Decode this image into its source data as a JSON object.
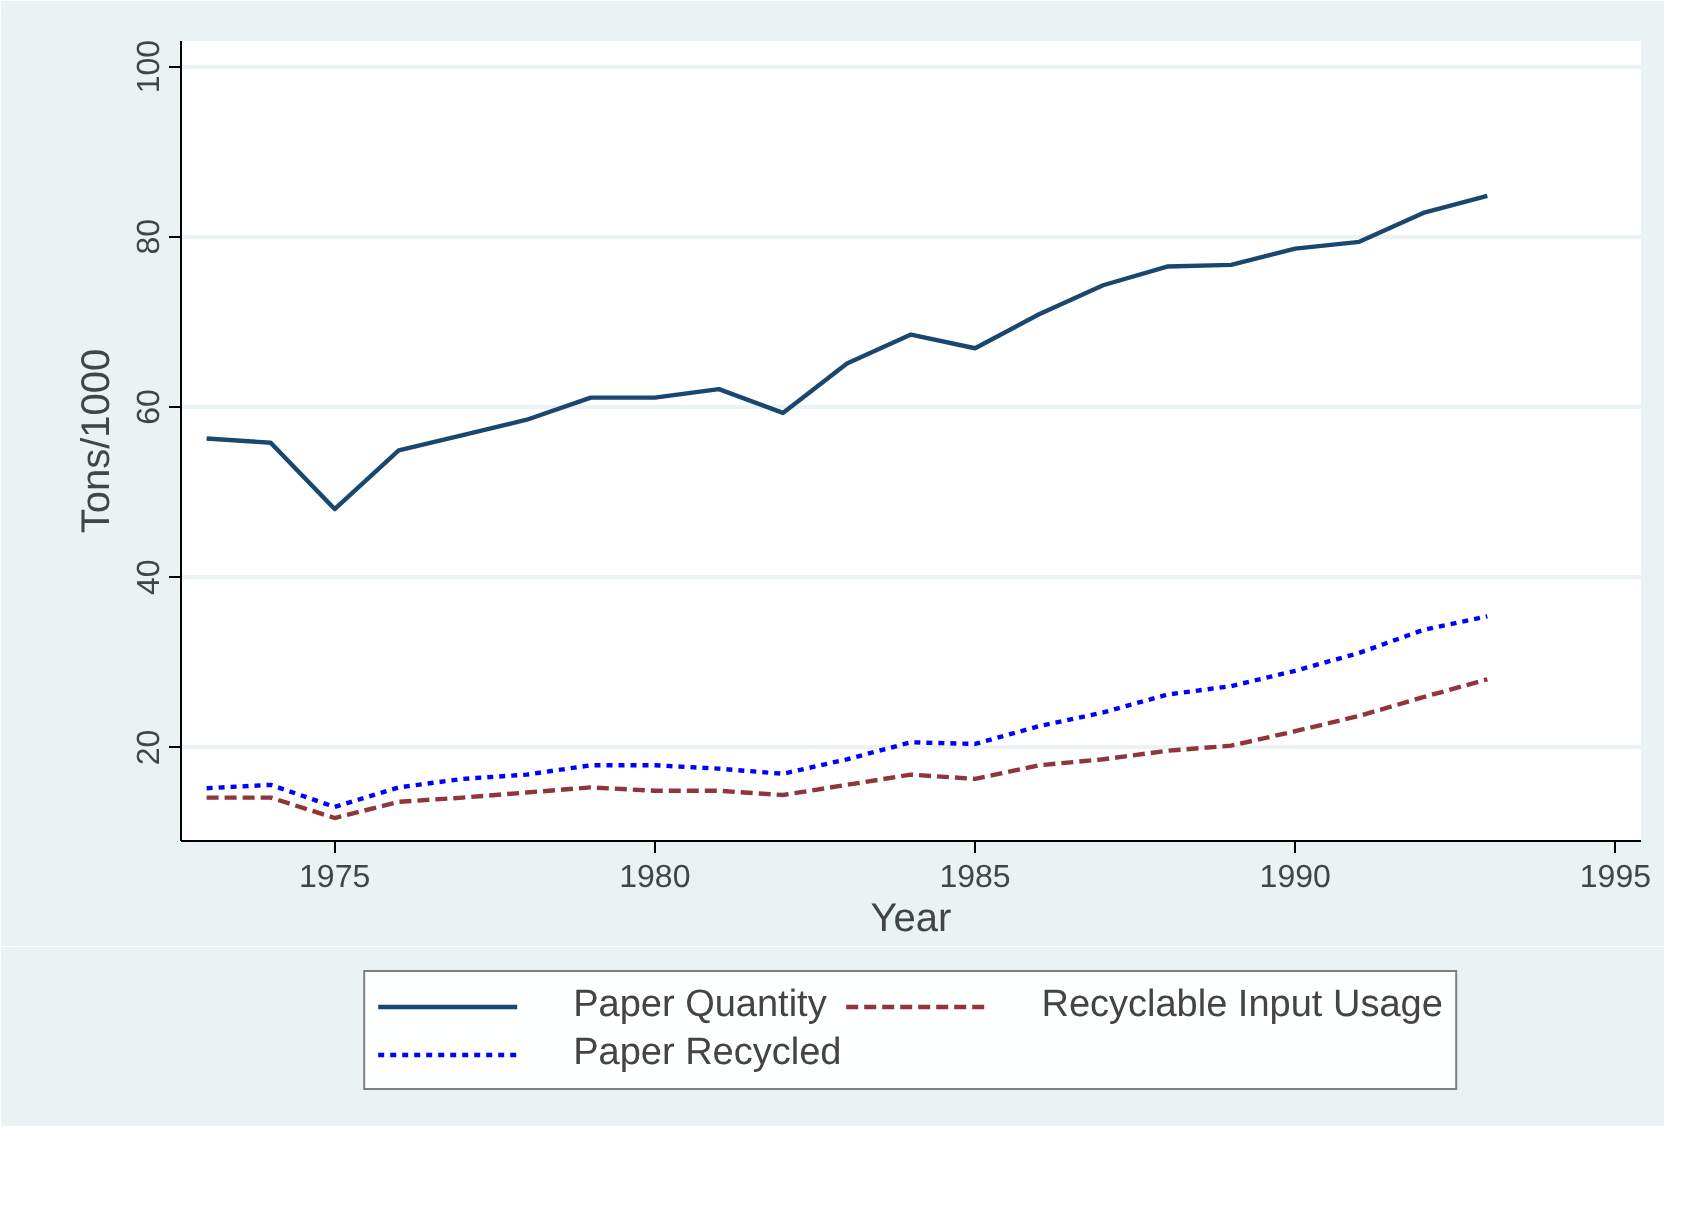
{
  "chart_data": {
    "type": "line",
    "xlabel": "Year",
    "ylabel": "Tons/1000",
    "x": [
      1973,
      1974,
      1975,
      1976,
      1977,
      1978,
      1979,
      1980,
      1981,
      1982,
      1983,
      1984,
      1985,
      1986,
      1987,
      1988,
      1989,
      1990,
      1991,
      1992,
      1993
    ],
    "series": [
      {
        "name": "Paper Quantity",
        "color": "#1a476f",
        "line_style": "solid",
        "values": [
          56.3,
          55.8,
          48.0,
          54.9,
          56.7,
          58.5,
          61.1,
          61.1,
          62.1,
          59.3,
          65.1,
          68.5,
          66.9,
          70.9,
          74.3,
          76.5,
          76.7,
          78.6,
          79.4,
          82.8,
          84.8
        ]
      },
      {
        "name": "Recyclable Input Usage",
        "color": "#90353b",
        "line_style": "dashed",
        "values": [
          14.1,
          14.1,
          11.7,
          13.6,
          14.1,
          14.7,
          15.3,
          14.9,
          14.9,
          14.4,
          15.6,
          16.8,
          16.3,
          17.9,
          18.6,
          19.6,
          20.2,
          21.9,
          23.7,
          25.9,
          28.0
        ]
      },
      {
        "name": "Paper Recycled",
        "color": "#0000ff",
        "line_style": "dotted",
        "values": [
          15.2,
          15.6,
          13.0,
          15.3,
          16.3,
          16.8,
          17.9,
          17.9,
          17.5,
          16.9,
          18.6,
          20.6,
          20.4,
          22.5,
          24.1,
          26.2,
          27.2,
          29.0,
          31.1,
          33.8,
          35.4
        ]
      }
    ],
    "xlim": [
      1972.6,
      1995.4
    ],
    "ylim": [
      9,
      103
    ],
    "xticks": [
      1975,
      1980,
      1985,
      1990,
      1995
    ],
    "yticks": [
      20,
      40,
      60,
      80,
      100
    ],
    "grid": "y",
    "legend": "bottom",
    "marker": "none"
  }
}
